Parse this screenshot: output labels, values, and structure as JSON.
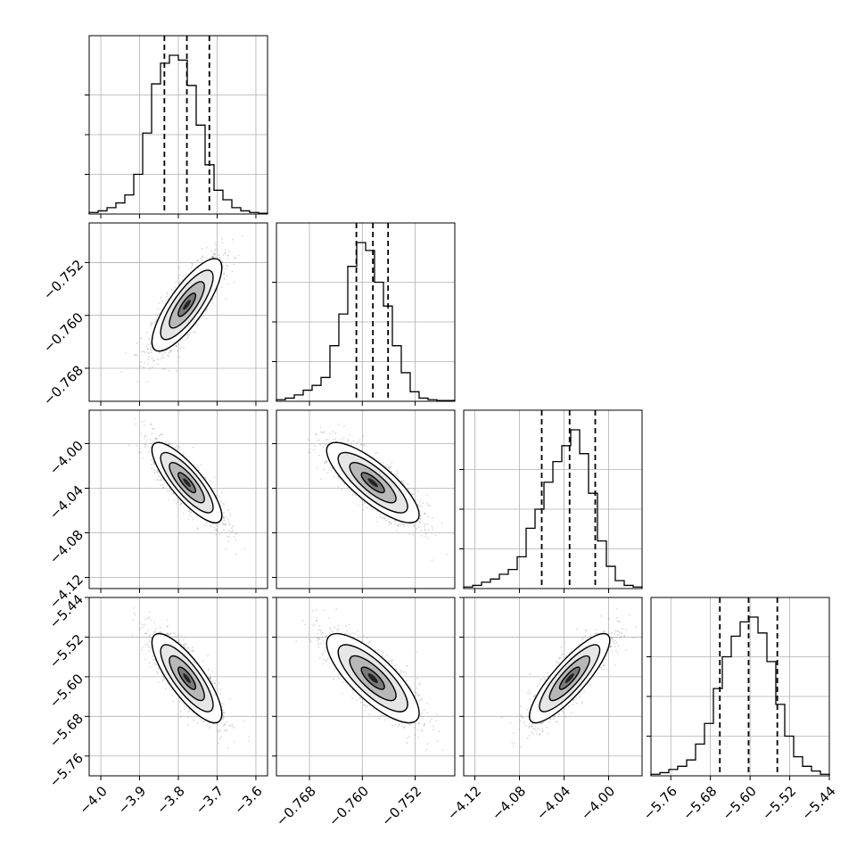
{
  "chart_data": {
    "type": "corner",
    "parameters": [
      {
        "range": [
          -4.03,
          -3.57
        ],
        "ticks": [
          -4.0,
          -3.9,
          -3.8,
          -3.7,
          -3.6
        ],
        "tick_labels": [
          "−4.0",
          "−3.9",
          "−3.8",
          "−3.7",
          "−3.6"
        ],
        "quantiles": [
          -3.836,
          -3.778,
          -3.72
        ],
        "hist": [
          0.01,
          0.02,
          0.04,
          0.07,
          0.12,
          0.25,
          0.51,
          0.82,
          0.95,
          1.0,
          0.97,
          0.81,
          0.56,
          0.31,
          0.15,
          0.09,
          0.04,
          0.02,
          0.01,
          0.005
        ]
      },
      {
        "range": [
          -0.773,
          -0.746
        ],
        "ticks": [
          -0.768,
          -0.76,
          -0.752
        ],
        "tick_labels": [
          "−0.768",
          "−0.760",
          "−0.752"
        ],
        "quantiles": [
          -0.7609,
          -0.7584,
          -0.7561
        ],
        "hist": [
          0.01,
          0.02,
          0.04,
          0.07,
          0.1,
          0.15,
          0.35,
          0.55,
          0.85,
          1.0,
          0.95,
          0.75,
          0.6,
          0.35,
          0.18,
          0.06,
          0.02,
          0.01,
          0.005,
          0.005
        ]
      },
      {
        "range": [
          -4.13,
          -3.97
        ],
        "ticks": [
          -4.12,
          -4.08,
          -4.04,
          -4.0
        ],
        "tick_labels": [
          "−4.12",
          "−4.08",
          "−4.04",
          "−4.00"
        ],
        "quantiles": [
          -4.06,
          -4.035,
          -4.012
        ],
        "hist": [
          0.01,
          0.02,
          0.04,
          0.06,
          0.09,
          0.12,
          0.2,
          0.38,
          0.5,
          0.67,
          0.8,
          0.9,
          1.0,
          0.85,
          0.6,
          0.3,
          0.14,
          0.05,
          0.02,
          0.01
        ]
      },
      {
        "range": [
          -5.8,
          -5.44
        ],
        "ticks": [
          -5.76,
          -5.68,
          -5.6,
          -5.52,
          -5.44
        ],
        "tick_labels": [
          "−5.76",
          "−5.68",
          "−5.60",
          "−5.52",
          "−5.44"
        ],
        "quantiles": [
          -5.661,
          -5.603,
          -5.545
        ],
        "hist": [
          0.01,
          0.02,
          0.04,
          0.06,
          0.1,
          0.2,
          0.33,
          0.55,
          0.75,
          0.88,
          0.97,
          1.0,
          0.9,
          0.72,
          0.45,
          0.25,
          0.12,
          0.06,
          0.03,
          0.01
        ]
      }
    ],
    "pairs": [
      {
        "row": 1,
        "col": 0,
        "mean": [
          -3.778,
          -0.7584
        ],
        "std": [
          0.045,
          0.0035
        ],
        "corr": 0.8
      },
      {
        "row": 2,
        "col": 0,
        "mean": [
          -3.778,
          -4.035
        ],
        "std": [
          0.045,
          0.018
        ],
        "corr": -0.82
      },
      {
        "row": 2,
        "col": 1,
        "mean": [
          -0.7584,
          -4.035
        ],
        "std": [
          0.0035,
          0.018
        ],
        "corr": -0.8
      },
      {
        "row": 3,
        "col": 0,
        "mean": [
          -3.778,
          -5.603
        ],
        "std": [
          0.045,
          0.045
        ],
        "corr": -0.8
      },
      {
        "row": 3,
        "col": 1,
        "mean": [
          -0.7584,
          -5.603
        ],
        "std": [
          0.0035,
          0.045
        ],
        "corr": -0.78
      },
      {
        "row": 3,
        "col": 2,
        "mean": [
          -4.035,
          -5.603
        ],
        "std": [
          0.018,
          0.045
        ],
        "corr": 0.85
      }
    ],
    "contour_levels_sigma": [
      0.5,
      1.0,
      1.5,
      2.0
    ],
    "grid": true,
    "colors": {
      "line": "#000000",
      "grid": "#b0b0b0",
      "scatter": "#777777",
      "density": "#000000"
    }
  }
}
